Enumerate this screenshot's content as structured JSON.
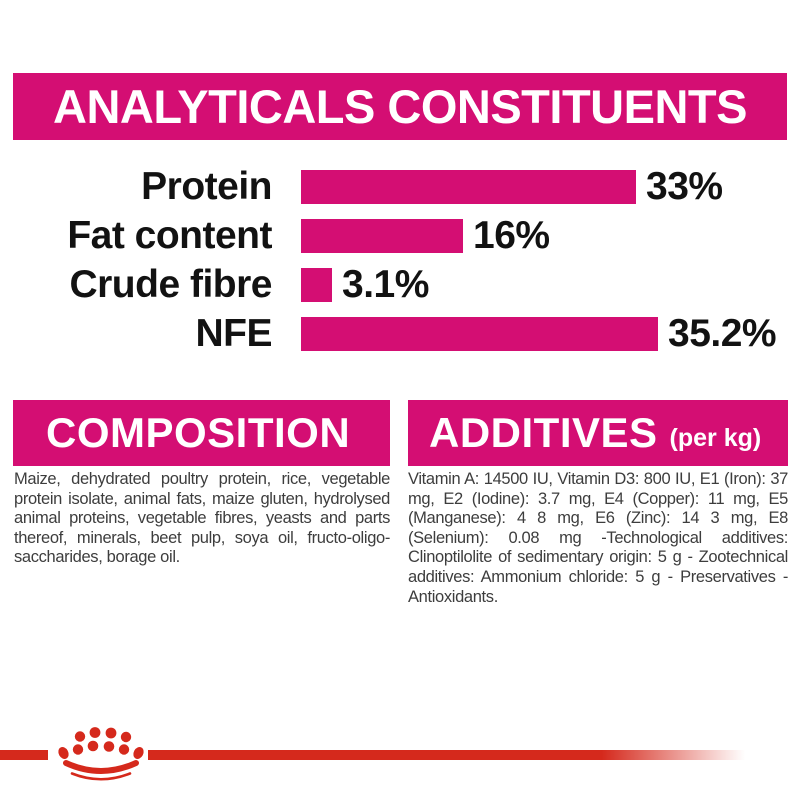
{
  "colors": {
    "magenta": "#D40E73",
    "red": "#D5291C",
    "text_dark": "#121212",
    "text_gray": "#3D3D3D"
  },
  "header": {
    "title": "ANALYTICALS CONSTITUENTS"
  },
  "chart_data": {
    "type": "bar",
    "orientation": "horizontal",
    "title": "ANALYTICALS CONSTITUENTS",
    "categories": [
      "Protein",
      "Fat content",
      "Crude fibre",
      "NFE"
    ],
    "values": [
      33,
      16,
      3.1,
      35.2
    ],
    "value_labels": [
      "33%",
      "16%",
      "3.1%",
      "35.2%"
    ],
    "unit": "%",
    "xlim": [
      0,
      36
    ],
    "bar_color": "#D40E73",
    "grid": false,
    "legend": false
  },
  "composition": {
    "title": "COMPOSITION",
    "body": "Maize, dehydrated poultry protein, rice, vegetable protein isolate,  animal fats, maize gluten, hydrolysed animal proteins, vegetable fibres, yeasts and parts thereof, minerals, beet pulp, soya oil, fructo-oligo-saccharides, borage oil."
  },
  "additives": {
    "title": "ADDITIVES",
    "title_suffix": "(per kg)",
    "body": "Vitamin A: 14500 IU, Vitamin D3: 800 IU, E1 (Iron): 37 mg, E2 (Iodine): 3.7 mg, E4 (Copper): 11 mg, E5 (Manganese): 4 8 mg, E6 (Zinc): 14 3 mg, E8 (Selenium): 0.08 mg -Technological additives: Clinoptilolite of sedimentary origin: 5 g - Zootechnical additives: Ammonium chloride: 5 g - Preservatives - Antioxidants."
  },
  "footer": {
    "logo": "royal-canin-crown-paw-logo"
  }
}
